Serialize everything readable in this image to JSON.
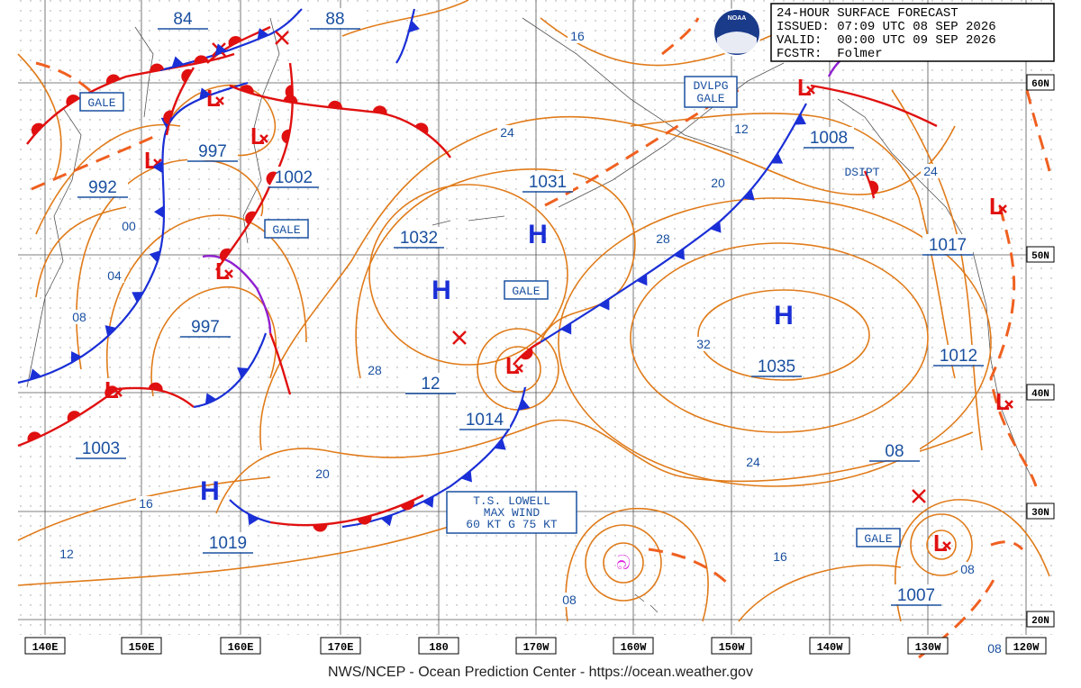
{
  "header": {
    "lines": [
      "24-HOUR SURFACE FORECAST",
      "ISSUED: 07:09 UTC 08 SEP 2026",
      "VALID:  00:00 UTC 09 SEP 2026",
      "FCSTR:  Folmer"
    ],
    "logo": "NOAA"
  },
  "longitude_labels": [
    "140E",
    "150E",
    "160E",
    "170E",
    "180",
    "170W",
    "160W",
    "150W",
    "140W",
    "130W",
    "120W"
  ],
  "latitude_labels": [
    "60N",
    "50N",
    "40N",
    "30N",
    "20N"
  ],
  "pressure_labels": [
    "84",
    "88",
    "997",
    "992",
    "1002",
    "1031",
    "1032",
    "997",
    "12",
    "1014",
    "1003",
    "1019",
    "1008",
    "1017",
    "1035",
    "1012",
    "08",
    "1007"
  ],
  "contour_labels": [
    "16",
    "24",
    "12",
    "20",
    "28",
    "00",
    "04",
    "08",
    "28",
    "20",
    "16",
    "12",
    "32",
    "24",
    "16",
    "08",
    "08",
    "08",
    "24"
  ],
  "symbols": {
    "high": "H",
    "low": "L"
  },
  "warnings": [
    "GALE",
    "GALE",
    "GALE",
    "GALE",
    "DSIPT"
  ],
  "dvlpg": [
    "DVLPG",
    "GALE"
  ],
  "storm": [
    "T.S. LOWELL",
    "MAX WIND",
    "60 KT G 75 KT"
  ],
  "footer": "NWS/NCEP - Ocean Prediction Center - https://ocean.weather.gov"
}
